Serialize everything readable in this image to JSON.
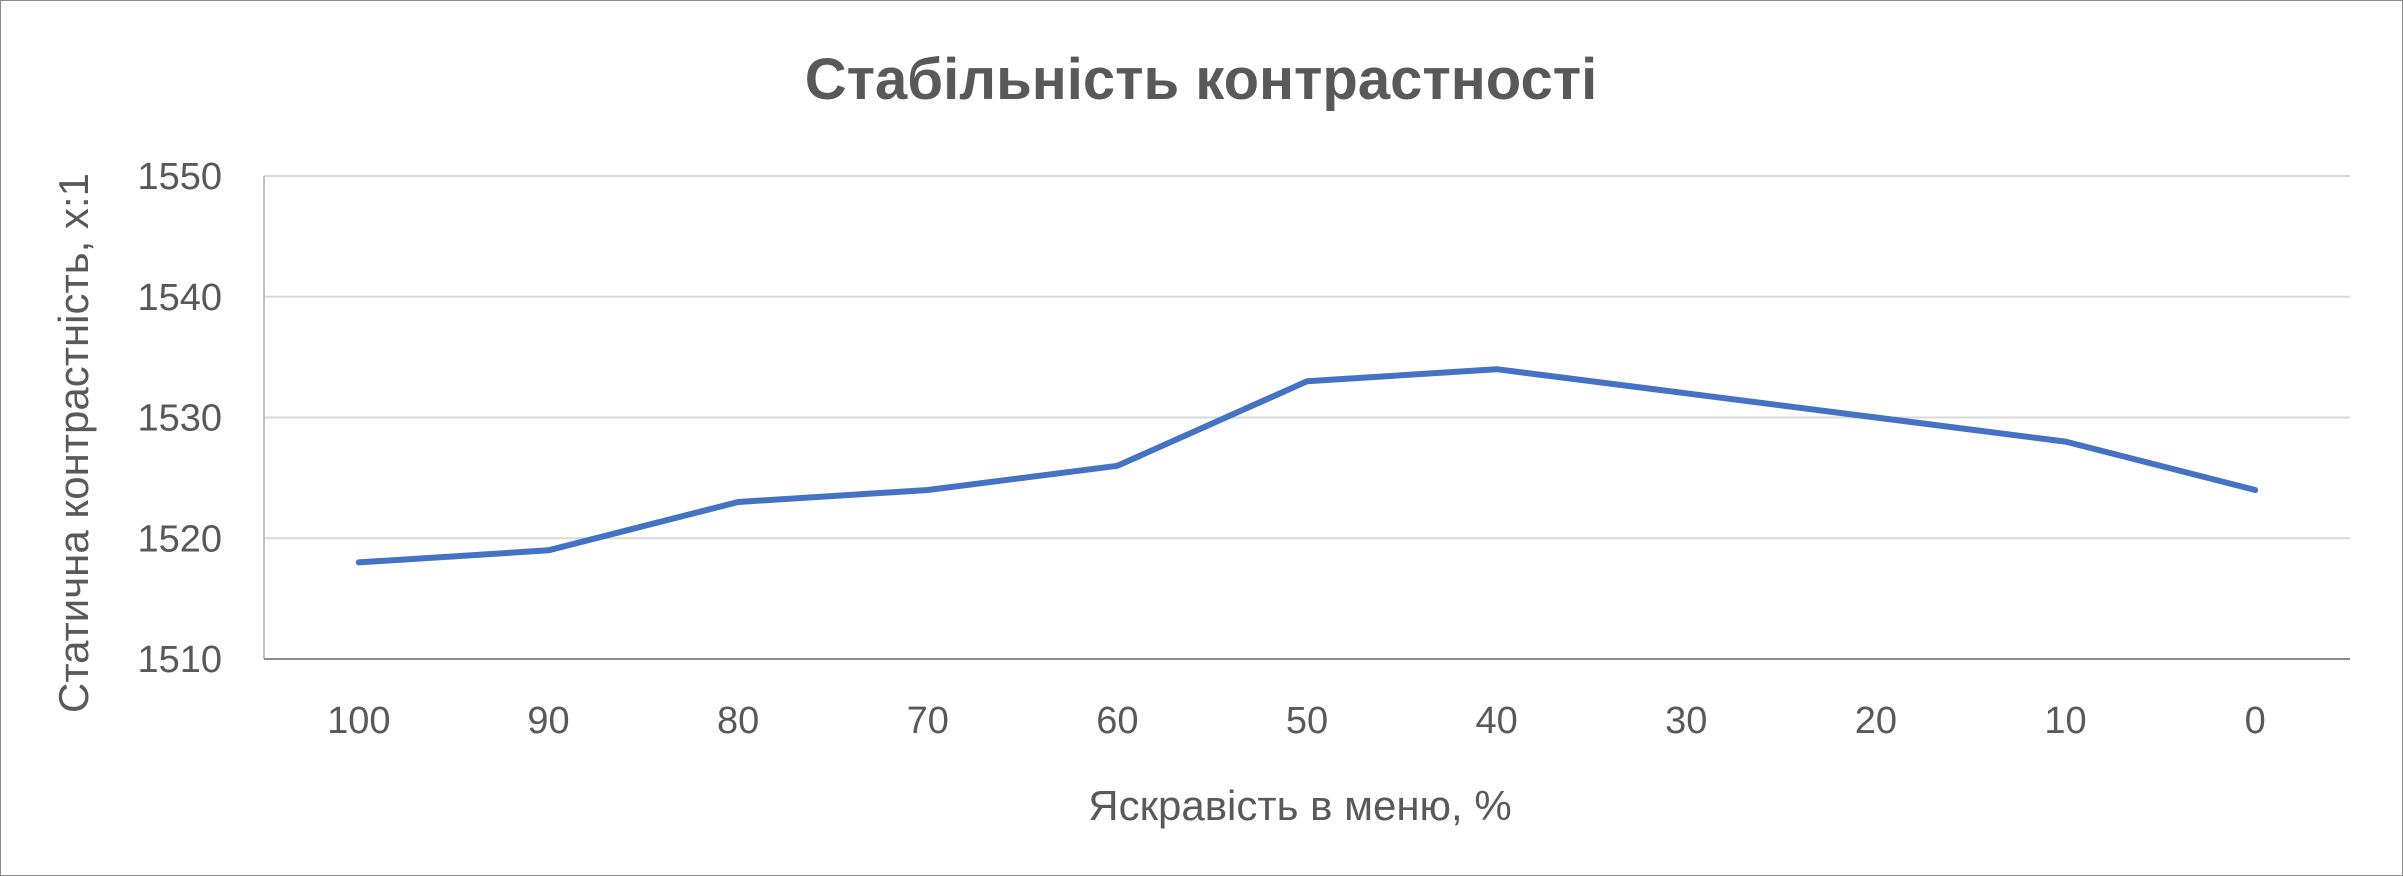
{
  "chart_data": {
    "type": "line",
    "title": "Стабільність контрастності",
    "xlabel": "Яскравість в меню, %",
    "ylabel": "Статична контрастність,  x:1",
    "categories": [
      "100",
      "90",
      "80",
      "70",
      "60",
      "50",
      "40",
      "30",
      "20",
      "10",
      "0"
    ],
    "series": [
      {
        "values": [
          1518,
          1519,
          1523,
          1524,
          1526,
          1533,
          1534,
          1532,
          1530,
          1528,
          1524
        ],
        "color": "#4472C4"
      }
    ],
    "ylim": [
      1510,
      1550
    ],
    "yticks": [
      "1510",
      "1520",
      "1530",
      "1540",
      "1550"
    ],
    "grid": true,
    "legend": "none"
  }
}
